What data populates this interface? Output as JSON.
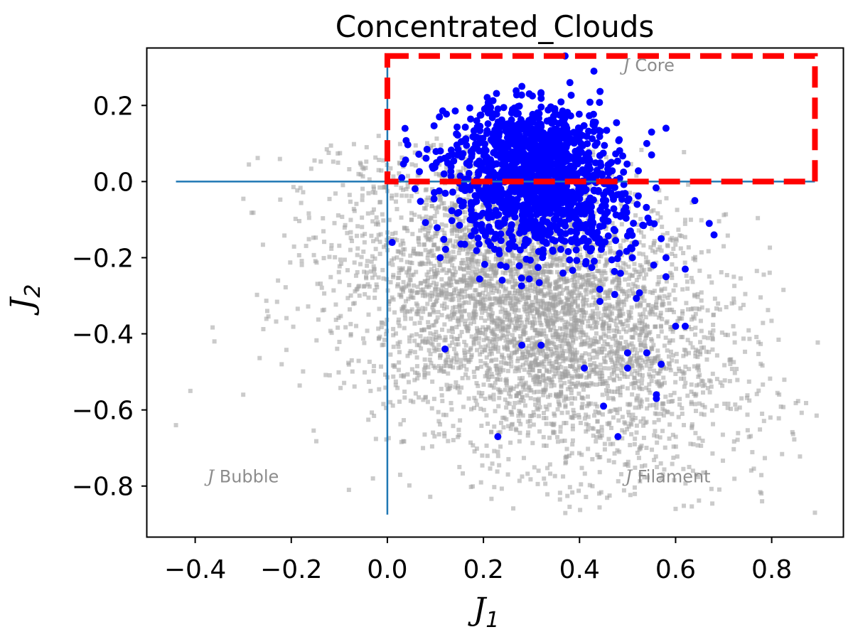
{
  "chart_data": {
    "type": "scatter",
    "title": "Concentrated_Clouds",
    "xlabel": {
      "main": "J",
      "sub": "1"
    },
    "ylabel": {
      "main": "J",
      "sub": "2"
    },
    "xlim": [
      -0.5,
      0.95
    ],
    "ylim": [
      -0.935,
      0.35
    ],
    "xticks": [
      -0.4,
      -0.2,
      0.0,
      0.2,
      0.4,
      0.6,
      0.8
    ],
    "xtick_labels": [
      "−0.4",
      "−0.2",
      "0.0",
      "0.2",
      "0.4",
      "0.6",
      "0.8"
    ],
    "yticks": [
      0.2,
      0.0,
      -0.2,
      -0.4,
      -0.6,
      -0.8
    ],
    "ytick_labels": [
      "0.2",
      "0.0",
      "−0.2",
      "−0.4",
      "−0.6",
      "−0.8"
    ],
    "grid": false,
    "reference_lines": {
      "horizontal": {
        "y": 0.0,
        "x_from": -0.44,
        "x_to": 0.89,
        "color": "#1f77b4"
      },
      "vertical": {
        "x": 0.0,
        "y_from": -0.875,
        "y_to": 0.31,
        "color": "#1f77b4"
      }
    },
    "highlight_box": {
      "x0": 0.0,
      "x1": 0.89,
      "y0": 0.0,
      "y1": 0.33,
      "color": "#ff0000",
      "style": "dashed"
    },
    "annotations": [
      {
        "prefix": "J",
        "text": " Core",
        "x": 0.49,
        "y": 0.29
      },
      {
        "prefix": "J",
        "text": " Bubble",
        "x": -0.375,
        "y": -0.79
      },
      {
        "prefix": "J",
        "text": " Filament",
        "x": 0.495,
        "y": -0.79
      }
    ],
    "series": [
      {
        "role": "background",
        "marker": "square",
        "color": "#a0a0a0",
        "count": 4500,
        "description_of_distribution": {
          "center": [
            0.3,
            -0.33
          ],
          "spread": [
            0.2,
            0.19
          ]
        },
        "notable_points": [
          [
            -0.44,
            -0.64
          ],
          [
            -0.41,
            -0.55
          ],
          [
            -0.36,
            -0.42
          ],
          [
            -0.3,
            -0.56
          ],
          [
            -0.25,
            -0.34
          ],
          [
            -0.22,
            -0.48
          ],
          [
            -0.08,
            -0.81
          ],
          [
            -0.03,
            -0.78
          ],
          [
            0.15,
            -0.75
          ],
          [
            0.6,
            -0.86
          ],
          [
            0.78,
            -0.61
          ],
          [
            0.78,
            -0.84
          ],
          [
            0.89,
            -0.87
          ],
          [
            0.72,
            -0.38
          ],
          [
            0.7,
            -0.17
          ]
        ]
      },
      {
        "role": "concentrated",
        "marker": "circle",
        "color": "#0000ff",
        "count": 1500,
        "description_of_distribution": {
          "center": [
            0.31,
            0.02
          ],
          "spread": [
            0.09,
            0.1
          ]
        },
        "notable_points": [
          [
            0.37,
            0.33
          ],
          [
            0.43,
            0.29
          ],
          [
            0.38,
            0.26
          ],
          [
            0.28,
            0.25
          ],
          [
            0.01,
            -0.16
          ],
          [
            0.03,
            0.01
          ],
          [
            0.11,
            -0.2
          ],
          [
            0.12,
            -0.44
          ],
          [
            0.23,
            -0.67
          ],
          [
            0.28,
            -0.43
          ],
          [
            0.32,
            -0.43
          ],
          [
            0.41,
            -0.49
          ],
          [
            0.45,
            -0.59
          ],
          [
            0.48,
            -0.67
          ],
          [
            0.5,
            -0.45
          ],
          [
            0.5,
            -0.49
          ],
          [
            0.54,
            -0.45
          ],
          [
            0.56,
            -0.57
          ],
          [
            0.56,
            -0.56
          ],
          [
            0.57,
            -0.48
          ],
          [
            0.58,
            -0.25
          ],
          [
            0.6,
            -0.38
          ],
          [
            0.62,
            -0.38
          ],
          [
            0.62,
            -0.23
          ],
          [
            0.64,
            -0.05
          ],
          [
            0.67,
            -0.11
          ],
          [
            0.68,
            -0.14
          ],
          [
            0.58,
            0.14
          ],
          [
            0.55,
            0.13
          ],
          [
            0.54,
            0.1
          ],
          [
            0.55,
            0.07
          ],
          [
            0.52,
            -0.06
          ],
          [
            0.51,
            -0.2
          ],
          [
            0.58,
            -0.2
          ],
          [
            0.57,
            -0.15
          ]
        ]
      }
    ]
  }
}
